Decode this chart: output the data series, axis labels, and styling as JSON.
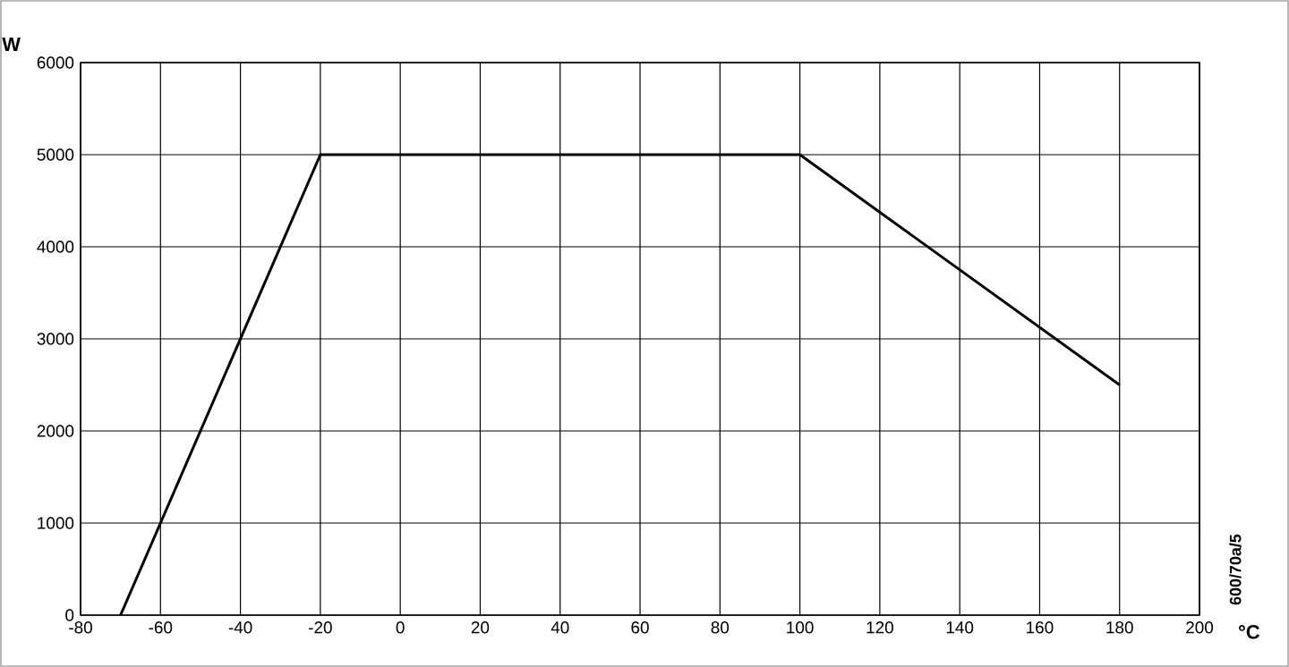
{
  "chart_data": {
    "type": "line",
    "x": [
      -70,
      -20,
      100,
      180
    ],
    "values": [
      0,
      5000,
      5000,
      2500
    ],
    "color": "#000000",
    "xlim": [
      -80,
      200
    ],
    "xticks": [
      -80,
      -60,
      -40,
      -20,
      0,
      20,
      40,
      60,
      80,
      100,
      120,
      140,
      160,
      180,
      200
    ],
    "ylim": [
      0,
      6000
    ],
    "yticks": [
      0,
      1000,
      2000,
      3000,
      4000,
      5000,
      6000
    ],
    "xlabel": "°C",
    "ylabel": "W",
    "annotations": [
      "600/70a/5"
    ],
    "grid": true,
    "marker": "none",
    "line_style": "solid"
  }
}
